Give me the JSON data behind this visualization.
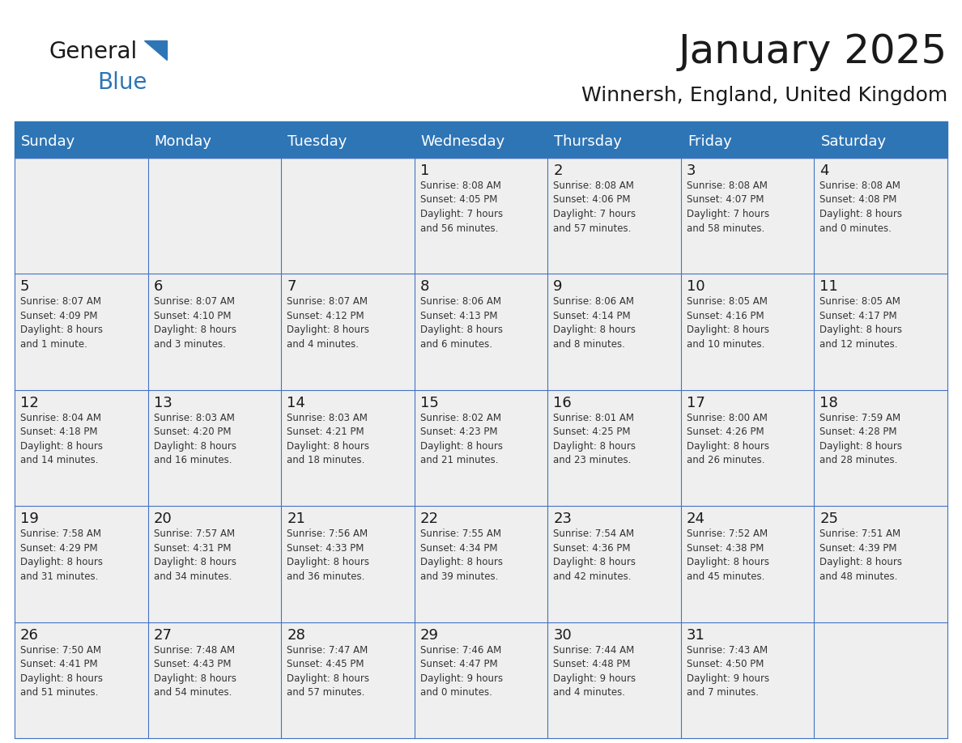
{
  "title": "January 2025",
  "subtitle": "Winnersh, England, United Kingdom",
  "header_color": "#2E75B6",
  "header_text_color": "#FFFFFF",
  "cell_bg_color": "#EFEFEF",
  "day_headers": [
    "Sunday",
    "Monday",
    "Tuesday",
    "Wednesday",
    "Thursday",
    "Friday",
    "Saturday"
  ],
  "weeks": [
    [
      {
        "day": "",
        "text": ""
      },
      {
        "day": "",
        "text": ""
      },
      {
        "day": "",
        "text": ""
      },
      {
        "day": "1",
        "text": "Sunrise: 8:08 AM\nSunset: 4:05 PM\nDaylight: 7 hours\nand 56 minutes."
      },
      {
        "day": "2",
        "text": "Sunrise: 8:08 AM\nSunset: 4:06 PM\nDaylight: 7 hours\nand 57 minutes."
      },
      {
        "day": "3",
        "text": "Sunrise: 8:08 AM\nSunset: 4:07 PM\nDaylight: 7 hours\nand 58 minutes."
      },
      {
        "day": "4",
        "text": "Sunrise: 8:08 AM\nSunset: 4:08 PM\nDaylight: 8 hours\nand 0 minutes."
      }
    ],
    [
      {
        "day": "5",
        "text": "Sunrise: 8:07 AM\nSunset: 4:09 PM\nDaylight: 8 hours\nand 1 minute."
      },
      {
        "day": "6",
        "text": "Sunrise: 8:07 AM\nSunset: 4:10 PM\nDaylight: 8 hours\nand 3 minutes."
      },
      {
        "day": "7",
        "text": "Sunrise: 8:07 AM\nSunset: 4:12 PM\nDaylight: 8 hours\nand 4 minutes."
      },
      {
        "day": "8",
        "text": "Sunrise: 8:06 AM\nSunset: 4:13 PM\nDaylight: 8 hours\nand 6 minutes."
      },
      {
        "day": "9",
        "text": "Sunrise: 8:06 AM\nSunset: 4:14 PM\nDaylight: 8 hours\nand 8 minutes."
      },
      {
        "day": "10",
        "text": "Sunrise: 8:05 AM\nSunset: 4:16 PM\nDaylight: 8 hours\nand 10 minutes."
      },
      {
        "day": "11",
        "text": "Sunrise: 8:05 AM\nSunset: 4:17 PM\nDaylight: 8 hours\nand 12 minutes."
      }
    ],
    [
      {
        "day": "12",
        "text": "Sunrise: 8:04 AM\nSunset: 4:18 PM\nDaylight: 8 hours\nand 14 minutes."
      },
      {
        "day": "13",
        "text": "Sunrise: 8:03 AM\nSunset: 4:20 PM\nDaylight: 8 hours\nand 16 minutes."
      },
      {
        "day": "14",
        "text": "Sunrise: 8:03 AM\nSunset: 4:21 PM\nDaylight: 8 hours\nand 18 minutes."
      },
      {
        "day": "15",
        "text": "Sunrise: 8:02 AM\nSunset: 4:23 PM\nDaylight: 8 hours\nand 21 minutes."
      },
      {
        "day": "16",
        "text": "Sunrise: 8:01 AM\nSunset: 4:25 PM\nDaylight: 8 hours\nand 23 minutes."
      },
      {
        "day": "17",
        "text": "Sunrise: 8:00 AM\nSunset: 4:26 PM\nDaylight: 8 hours\nand 26 minutes."
      },
      {
        "day": "18",
        "text": "Sunrise: 7:59 AM\nSunset: 4:28 PM\nDaylight: 8 hours\nand 28 minutes."
      }
    ],
    [
      {
        "day": "19",
        "text": "Sunrise: 7:58 AM\nSunset: 4:29 PM\nDaylight: 8 hours\nand 31 minutes."
      },
      {
        "day": "20",
        "text": "Sunrise: 7:57 AM\nSunset: 4:31 PM\nDaylight: 8 hours\nand 34 minutes."
      },
      {
        "day": "21",
        "text": "Sunrise: 7:56 AM\nSunset: 4:33 PM\nDaylight: 8 hours\nand 36 minutes."
      },
      {
        "day": "22",
        "text": "Sunrise: 7:55 AM\nSunset: 4:34 PM\nDaylight: 8 hours\nand 39 minutes."
      },
      {
        "day": "23",
        "text": "Sunrise: 7:54 AM\nSunset: 4:36 PM\nDaylight: 8 hours\nand 42 minutes."
      },
      {
        "day": "24",
        "text": "Sunrise: 7:52 AM\nSunset: 4:38 PM\nDaylight: 8 hours\nand 45 minutes."
      },
      {
        "day": "25",
        "text": "Sunrise: 7:51 AM\nSunset: 4:39 PM\nDaylight: 8 hours\nand 48 minutes."
      }
    ],
    [
      {
        "day": "26",
        "text": "Sunrise: 7:50 AM\nSunset: 4:41 PM\nDaylight: 8 hours\nand 51 minutes."
      },
      {
        "day": "27",
        "text": "Sunrise: 7:48 AM\nSunset: 4:43 PM\nDaylight: 8 hours\nand 54 minutes."
      },
      {
        "day": "28",
        "text": "Sunrise: 7:47 AM\nSunset: 4:45 PM\nDaylight: 8 hours\nand 57 minutes."
      },
      {
        "day": "29",
        "text": "Sunrise: 7:46 AM\nSunset: 4:47 PM\nDaylight: 9 hours\nand 0 minutes."
      },
      {
        "day": "30",
        "text": "Sunrise: 7:44 AM\nSunset: 4:48 PM\nDaylight: 9 hours\nand 4 minutes."
      },
      {
        "day": "31",
        "text": "Sunrise: 7:43 AM\nSunset: 4:50 PM\nDaylight: 9 hours\nand 7 minutes."
      },
      {
        "day": "",
        "text": ""
      }
    ]
  ],
  "logo_color_general": "#1a1a1a",
  "logo_color_blue": "#2E75B6",
  "title_fontsize": 36,
  "subtitle_fontsize": 18,
  "header_fontsize": 13,
  "day_num_fontsize": 13,
  "cell_text_fontsize": 8.5,
  "line_color": "#4472C4",
  "separator_color": "#2E75B6"
}
